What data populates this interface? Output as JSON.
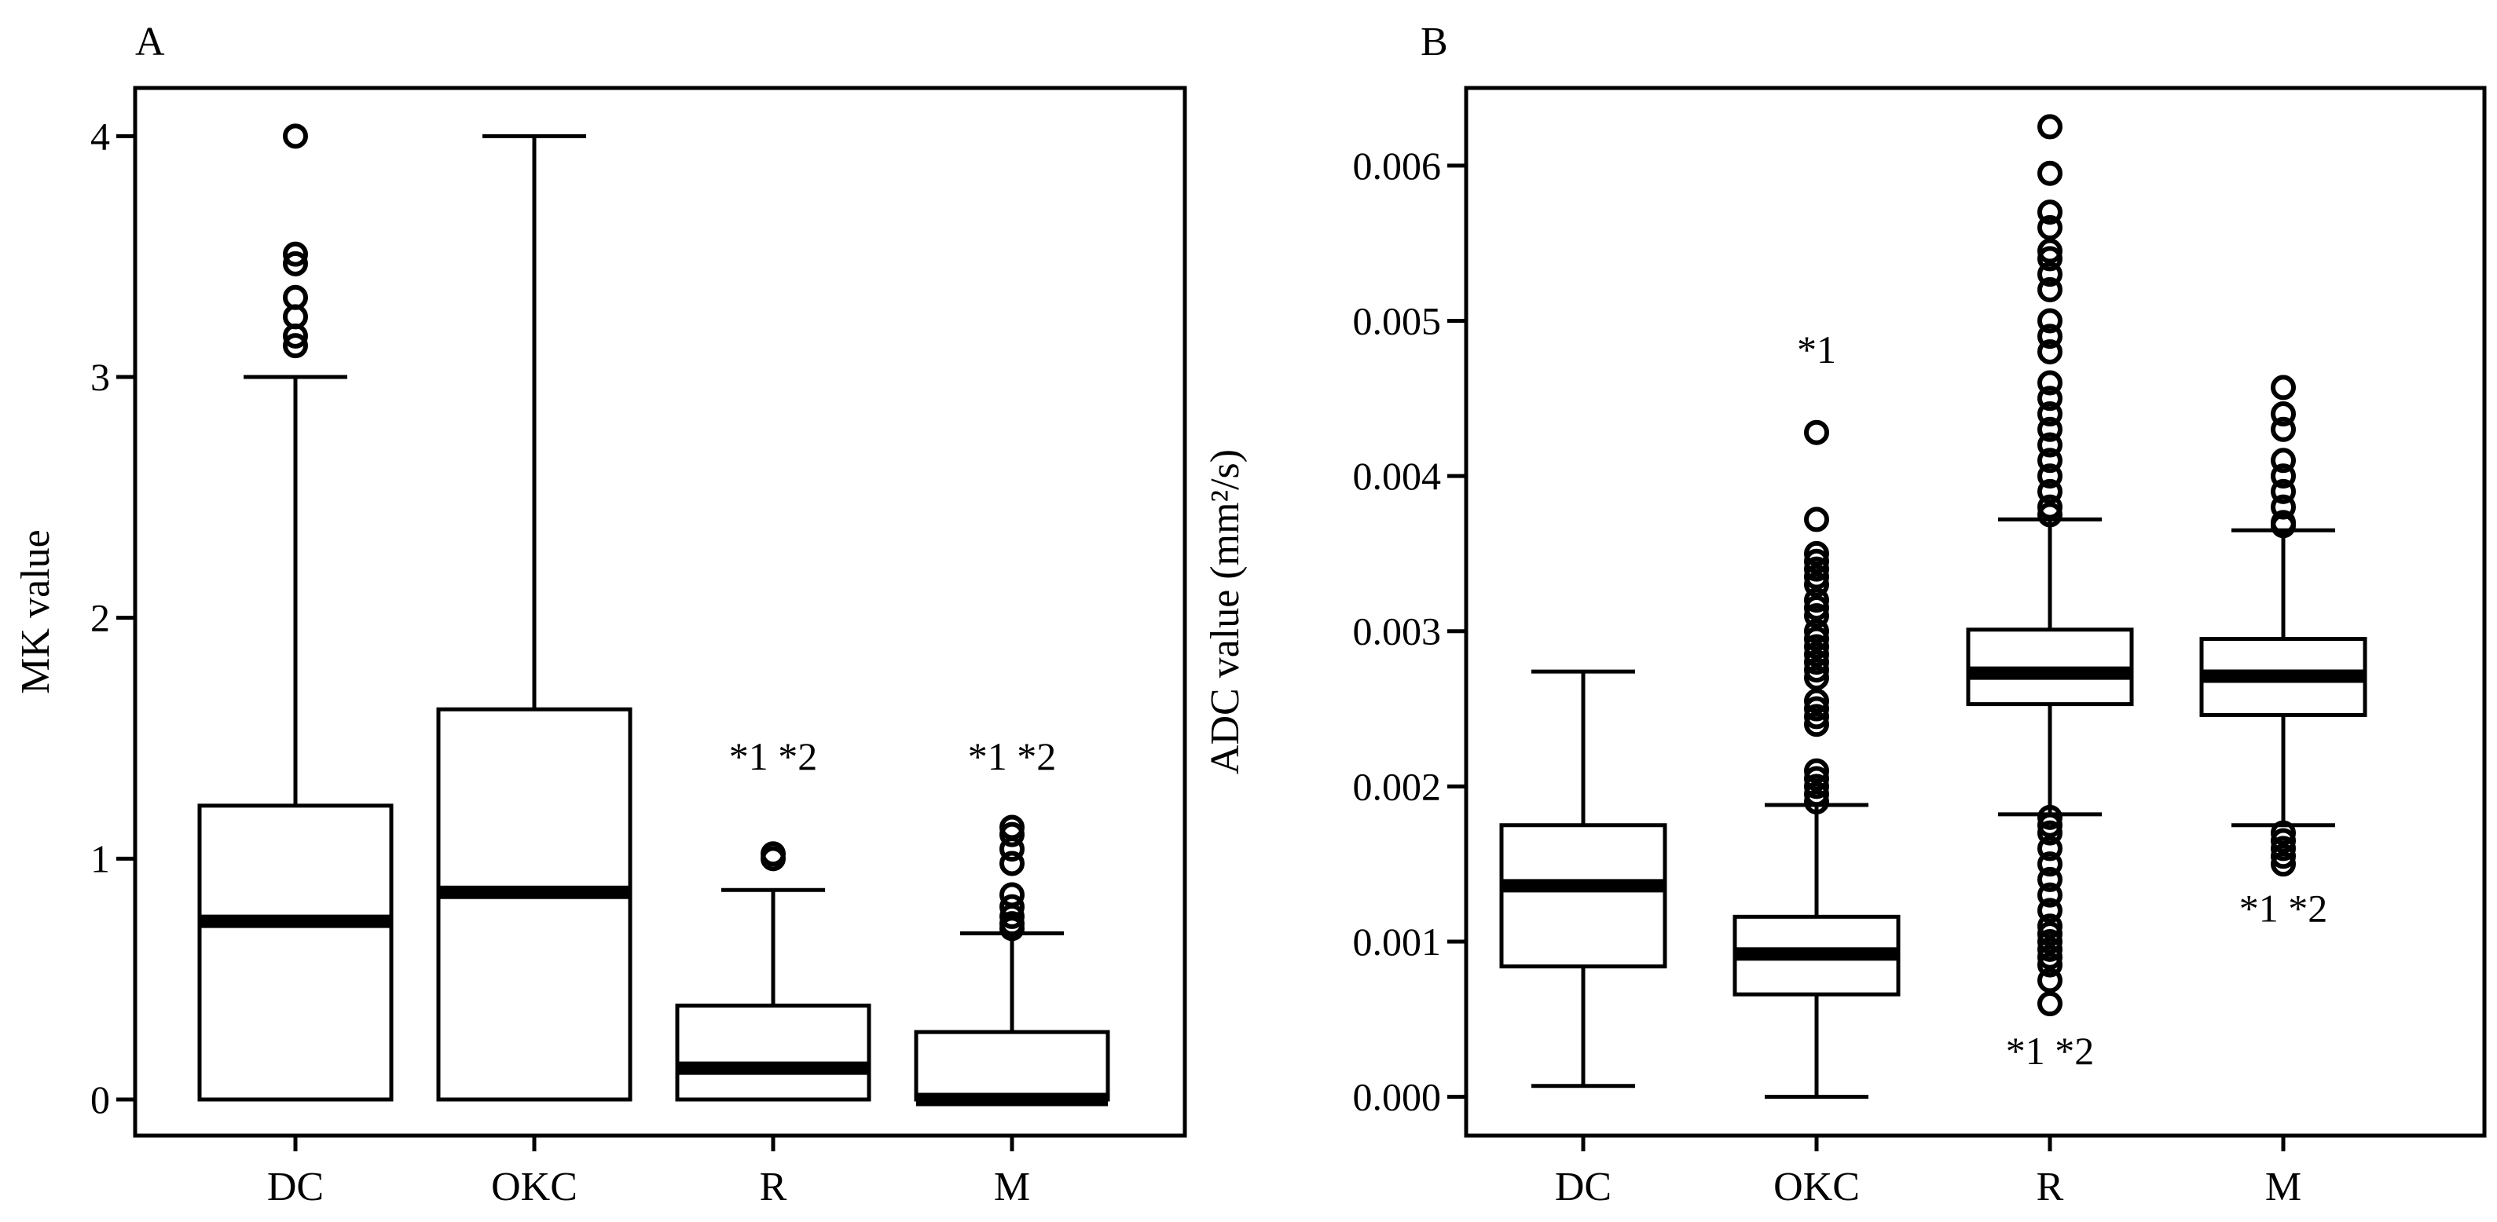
{
  "chart_data": [
    {
      "type": "box",
      "panel_label": "A",
      "ylabel": "MK value",
      "xlabel": "",
      "ylim": [
        -0.15,
        4.2
      ],
      "yticks": [
        0,
        1,
        2,
        3,
        4
      ],
      "ytick_labels": [
        "0",
        "1",
        "2",
        "3",
        "4"
      ],
      "categories": [
        "DC",
        "OKC",
        "R",
        "M"
      ],
      "boxes": [
        {
          "name": "DC",
          "whisker_low": 0,
          "q1": 0,
          "median": 0.74,
          "q3": 1.22,
          "whisker_high": 3.0,
          "outliers": [
            3.13,
            3.17,
            3.25,
            3.33,
            3.47,
            3.51,
            4.0
          ],
          "annotation": "",
          "annotation_value": null
        },
        {
          "name": "OKC",
          "whisker_low": 0,
          "q1": 0,
          "median": 0.86,
          "q3": 1.62,
          "whisker_high": 4.0,
          "outliers": [],
          "annotation": "",
          "annotation_value": null
        },
        {
          "name": "R",
          "whisker_low": 0,
          "q1": 0,
          "median": 0.13,
          "q3": 0.39,
          "whisker_high": 0.87,
          "outliers": [
            1.0,
            1.02
          ],
          "annotation": "*1 *2",
          "annotation_value": 1.37
        },
        {
          "name": "M",
          "whisker_low": 0,
          "q1": 0,
          "median": 0.0,
          "q3": 0.28,
          "whisker_high": 0.69,
          "outliers": [
            0.71,
            0.73,
            0.76,
            0.8,
            0.85,
            0.98,
            1.04,
            1.1,
            1.13
          ],
          "annotation": "*1 *2",
          "annotation_value": 1.37
        }
      ]
    },
    {
      "type": "box",
      "panel_label": "B",
      "ylabel": "ADC value (mm²/s)",
      "xlabel": "",
      "ylim": [
        -0.00025,
        0.0065
      ],
      "yticks": [
        0,
        0.001,
        0.002,
        0.003,
        0.004,
        0.005,
        0.006
      ],
      "ytick_labels": [
        "0.000",
        "0.001",
        "0.002",
        "0.003",
        "0.004",
        "0.005",
        "0.006"
      ],
      "categories": [
        "DC",
        "OKC",
        "R",
        "M"
      ],
      "boxes": [
        {
          "name": "DC",
          "whisker_low": 7e-05,
          "q1": 0.00084,
          "median": 0.00136,
          "q3": 0.00175,
          "whisker_high": 0.00274,
          "outliers": [],
          "annotation": "",
          "annotation_value": null
        },
        {
          "name": "OKC",
          "whisker_low": 0.0,
          "q1": 0.00066,
          "median": 0.00092,
          "q3": 0.00116,
          "whisker_high": 0.00188,
          "outliers": [
            0.0019,
            0.00195,
            0.002,
            0.00205,
            0.0021,
            0.0024,
            0.00245,
            0.0025,
            0.00255,
            0.0027,
            0.00275,
            0.0028,
            0.00285,
            0.0029,
            0.00295,
            0.003,
            0.0031,
            0.00315,
            0.0032,
            0.0033,
            0.00335,
            0.0034,
            0.00345,
            0.0035,
            0.00372,
            0.00428
          ],
          "annotation": "*1",
          "annotation_value": 0.00473
        },
        {
          "name": "R",
          "whisker_low": 0.00182,
          "q1": 0.00253,
          "median": 0.00273,
          "q3": 0.00301,
          "whisker_high": 0.00372,
          "outliers": [
            0.0006,
            0.00075,
            0.00085,
            0.0009,
            0.00095,
            0.001,
            0.00105,
            0.0011,
            0.0012,
            0.0013,
            0.0014,
            0.0015,
            0.0016,
            0.0017,
            0.00175,
            0.0018,
            0.00375,
            0.0038,
            0.0039,
            0.004,
            0.0041,
            0.0042,
            0.0043,
            0.0044,
            0.0045,
            0.0046,
            0.0048,
            0.0049,
            0.005,
            0.0052,
            0.0053,
            0.0054,
            0.00545,
            0.0056,
            0.0057,
            0.00595,
            0.00625
          ],
          "annotation": "*1 *2",
          "annotation_value": 0.00021
        },
        {
          "name": "M",
          "whisker_low": 0.00175,
          "q1": 0.00246,
          "median": 0.00271,
          "q3": 0.00295,
          "whisker_high": 0.00365,
          "outliers": [
            0.0015,
            0.00155,
            0.0016,
            0.00165,
            0.0017,
            0.00368,
            0.0037,
            0.0038,
            0.0039,
            0.004,
            0.0041,
            0.0043,
            0.0044,
            0.00457
          ],
          "annotation": "*1 *2",
          "annotation_value": 0.00113
        }
      ]
    }
  ]
}
